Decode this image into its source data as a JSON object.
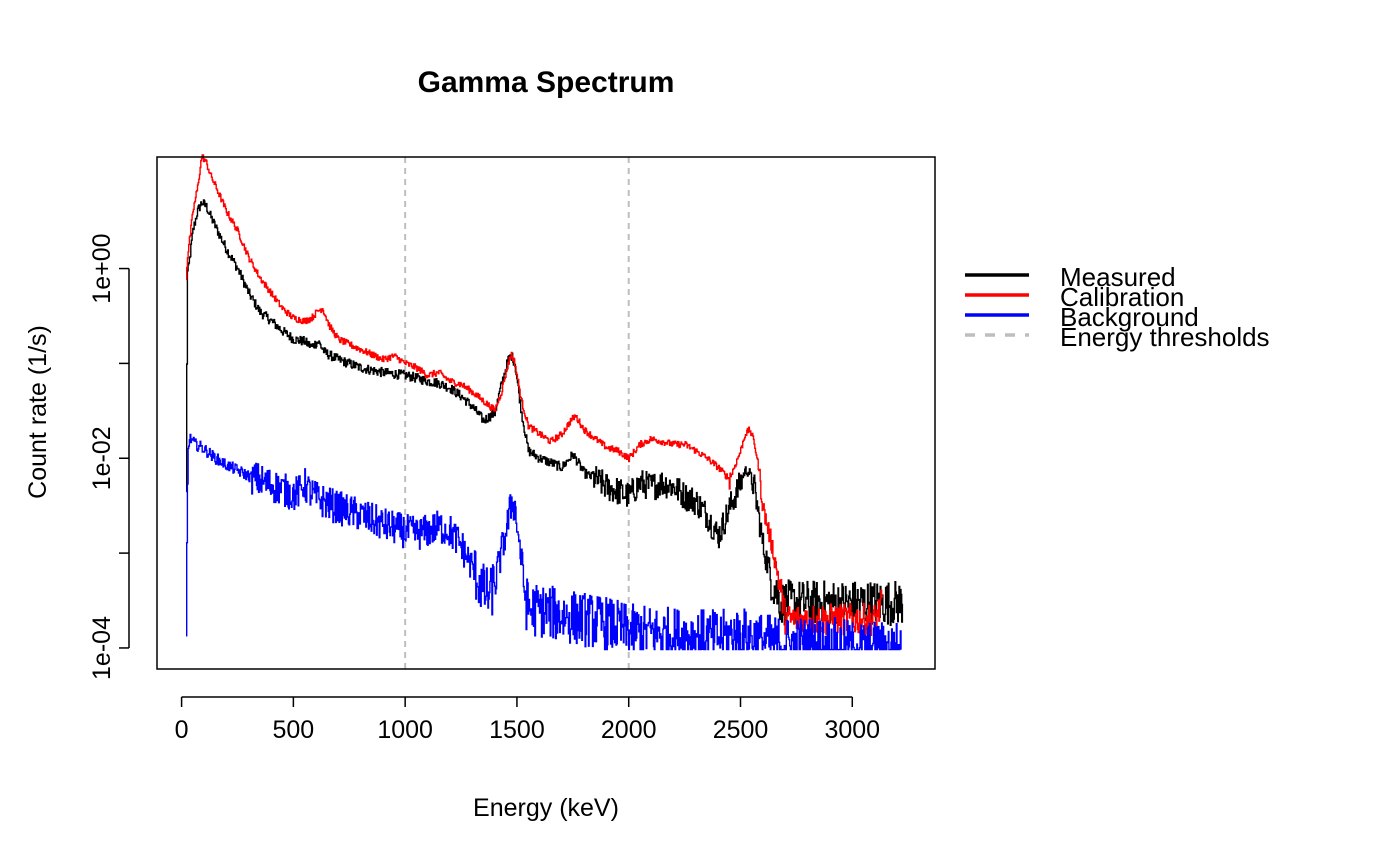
{
  "chart_data": {
    "type": "line",
    "title": "Gamma Spectrum",
    "xlabel": "Energy (keV)",
    "ylabel": "Count rate (1/s)",
    "xlim": [
      -110,
      3370
    ],
    "ylim": [
      6e-05,
      15
    ],
    "log_y": true,
    "grid": false,
    "legend_position": "right",
    "x_ticks": [
      0,
      500,
      1000,
      1500,
      2000,
      2500,
      3000
    ],
    "x_tick_labels": [
      "0",
      "500",
      "1000",
      "1500",
      "2000",
      "2500",
      "3000"
    ],
    "y_ticks": [
      0.0001,
      0.001,
      0.01,
      0.1,
      1
    ],
    "y_tick_labels": [
      "1e-04",
      "",
      "1e-02",
      "",
      "1e+00"
    ],
    "thresholds": [
      1000,
      2000
    ],
    "legend": [
      "Measured",
      "Calibration",
      "Background",
      "Energy thresholds"
    ],
    "colors": {
      "Measured": "#000000",
      "Calibration": "#ff0000",
      "Background": "#0000ff",
      "Energy thresholds": "#bebebe"
    },
    "series": [
      {
        "name": "Measured",
        "x": [
          20,
          25,
          30,
          50,
          70,
          90,
          110,
          130,
          150,
          175,
          200,
          250,
          300,
          350,
          400,
          450,
          500,
          550,
          580,
          610,
          640,
          700,
          800,
          900,
          1000,
          1050,
          1100,
          1150,
          1200,
          1250,
          1300,
          1350,
          1400,
          1430,
          1460,
          1475,
          1490,
          1520,
          1550,
          1600,
          1650,
          1700,
          1750,
          1800,
          1850,
          1900,
          1950,
          2000,
          2050,
          2100,
          2150,
          2200,
          2250,
          2300,
          2350,
          2400,
          2450,
          2500,
          2520,
          2540,
          2560,
          2580,
          2600,
          2640,
          2680,
          2720,
          2800,
          2900,
          3000,
          3100,
          3225
        ],
        "y": [
          0.004,
          0.9,
          1.0,
          2.5,
          4.0,
          5.0,
          4.5,
          3.5,
          2.8,
          2.1,
          1.6,
          1.0,
          0.55,
          0.35,
          0.28,
          0.22,
          0.18,
          0.17,
          0.15,
          0.17,
          0.13,
          0.11,
          0.09,
          0.08,
          0.075,
          0.07,
          0.065,
          0.062,
          0.055,
          0.045,
          0.035,
          0.025,
          0.03,
          0.06,
          0.11,
          0.12,
          0.1,
          0.03,
          0.012,
          0.01,
          0.009,
          0.008,
          0.011,
          0.007,
          0.006,
          0.005,
          0.0045,
          0.004,
          0.0055,
          0.005,
          0.0055,
          0.005,
          0.004,
          0.0035,
          0.0025,
          0.0015,
          0.003,
          0.0055,
          0.0075,
          0.007,
          0.005,
          0.0025,
          0.0012,
          0.0005,
          0.0003,
          0.0003,
          0.0003,
          0.0003,
          0.0003,
          0.0003,
          0.0003
        ]
      },
      {
        "name": "Calibration",
        "x": [
          20,
          25,
          30,
          50,
          70,
          90,
          110,
          130,
          150,
          175,
          200,
          250,
          300,
          350,
          400,
          450,
          500,
          550,
          580,
          610,
          630,
          660,
          700,
          800,
          900,
          950,
          1000,
          1050,
          1100,
          1150,
          1200,
          1250,
          1300,
          1350,
          1400,
          1430,
          1460,
          1475,
          1490,
          1520,
          1550,
          1600,
          1650,
          1700,
          1740,
          1760,
          1800,
          1850,
          1900,
          1950,
          2000,
          2050,
          2100,
          2150,
          2200,
          2250,
          2300,
          2350,
          2400,
          2450,
          2500,
          2520,
          2540,
          2560,
          2580,
          2600,
          2640,
          2680,
          2700,
          2800,
          2900,
          3000,
          3100,
          3135
        ],
        "y": [
          0.8,
          1.3,
          1.6,
          4.0,
          7.0,
          15.5,
          13.0,
          9.5,
          7.5,
          5.5,
          4.0,
          2.5,
          1.3,
          0.8,
          0.55,
          0.38,
          0.3,
          0.28,
          0.3,
          0.36,
          0.38,
          0.25,
          0.18,
          0.14,
          0.11,
          0.12,
          0.1,
          0.09,
          0.075,
          0.08,
          0.065,
          0.06,
          0.05,
          0.04,
          0.032,
          0.05,
          0.1,
          0.125,
          0.1,
          0.04,
          0.022,
          0.018,
          0.015,
          0.018,
          0.025,
          0.028,
          0.02,
          0.016,
          0.013,
          0.012,
          0.01,
          0.014,
          0.016,
          0.015,
          0.014,
          0.014,
          0.012,
          0.01,
          0.008,
          0.006,
          0.012,
          0.018,
          0.02,
          0.015,
          0.008,
          0.003,
          0.0012,
          0.0004,
          0.0002,
          0.0002,
          0.0002,
          0.0002,
          0.0002,
          0.0003
        ]
      },
      {
        "name": "Background",
        "x": [
          20,
          25,
          30,
          40,
          60,
          90,
          150,
          200,
          300,
          400,
          500,
          530,
          545,
          560,
          600,
          700,
          800,
          900,
          1000,
          1050,
          1100,
          1150,
          1200,
          1250,
          1300,
          1350,
          1380,
          1420,
          1460,
          1475,
          1490,
          1520,
          1540,
          1560,
          1600,
          1700,
          1800,
          1900,
          2000,
          2200,
          2400,
          2500,
          2600,
          2700,
          2800,
          2900,
          3000,
          3100,
          3220
        ],
        "y": [
          0.0001,
          0.005,
          0.015,
          0.016,
          0.014,
          0.013,
          0.01,
          0.0085,
          0.0065,
          0.0052,
          0.0042,
          0.0045,
          0.0055,
          0.0048,
          0.0038,
          0.003,
          0.0025,
          0.002,
          0.0017,
          0.0016,
          0.0017,
          0.0019,
          0.0017,
          0.0012,
          0.0007,
          0.0004,
          0.00035,
          0.0008,
          0.0022,
          0.0035,
          0.003,
          0.0008,
          0.0003,
          0.00025,
          0.00025,
          0.00022,
          0.0002,
          0.00018,
          0.00015,
          0.00014,
          0.00013,
          0.00014,
          0.00012,
          0.00011,
          0.00011,
          0.00011,
          0.0001,
          0.0001,
          0.0001
        ]
      }
    ]
  }
}
